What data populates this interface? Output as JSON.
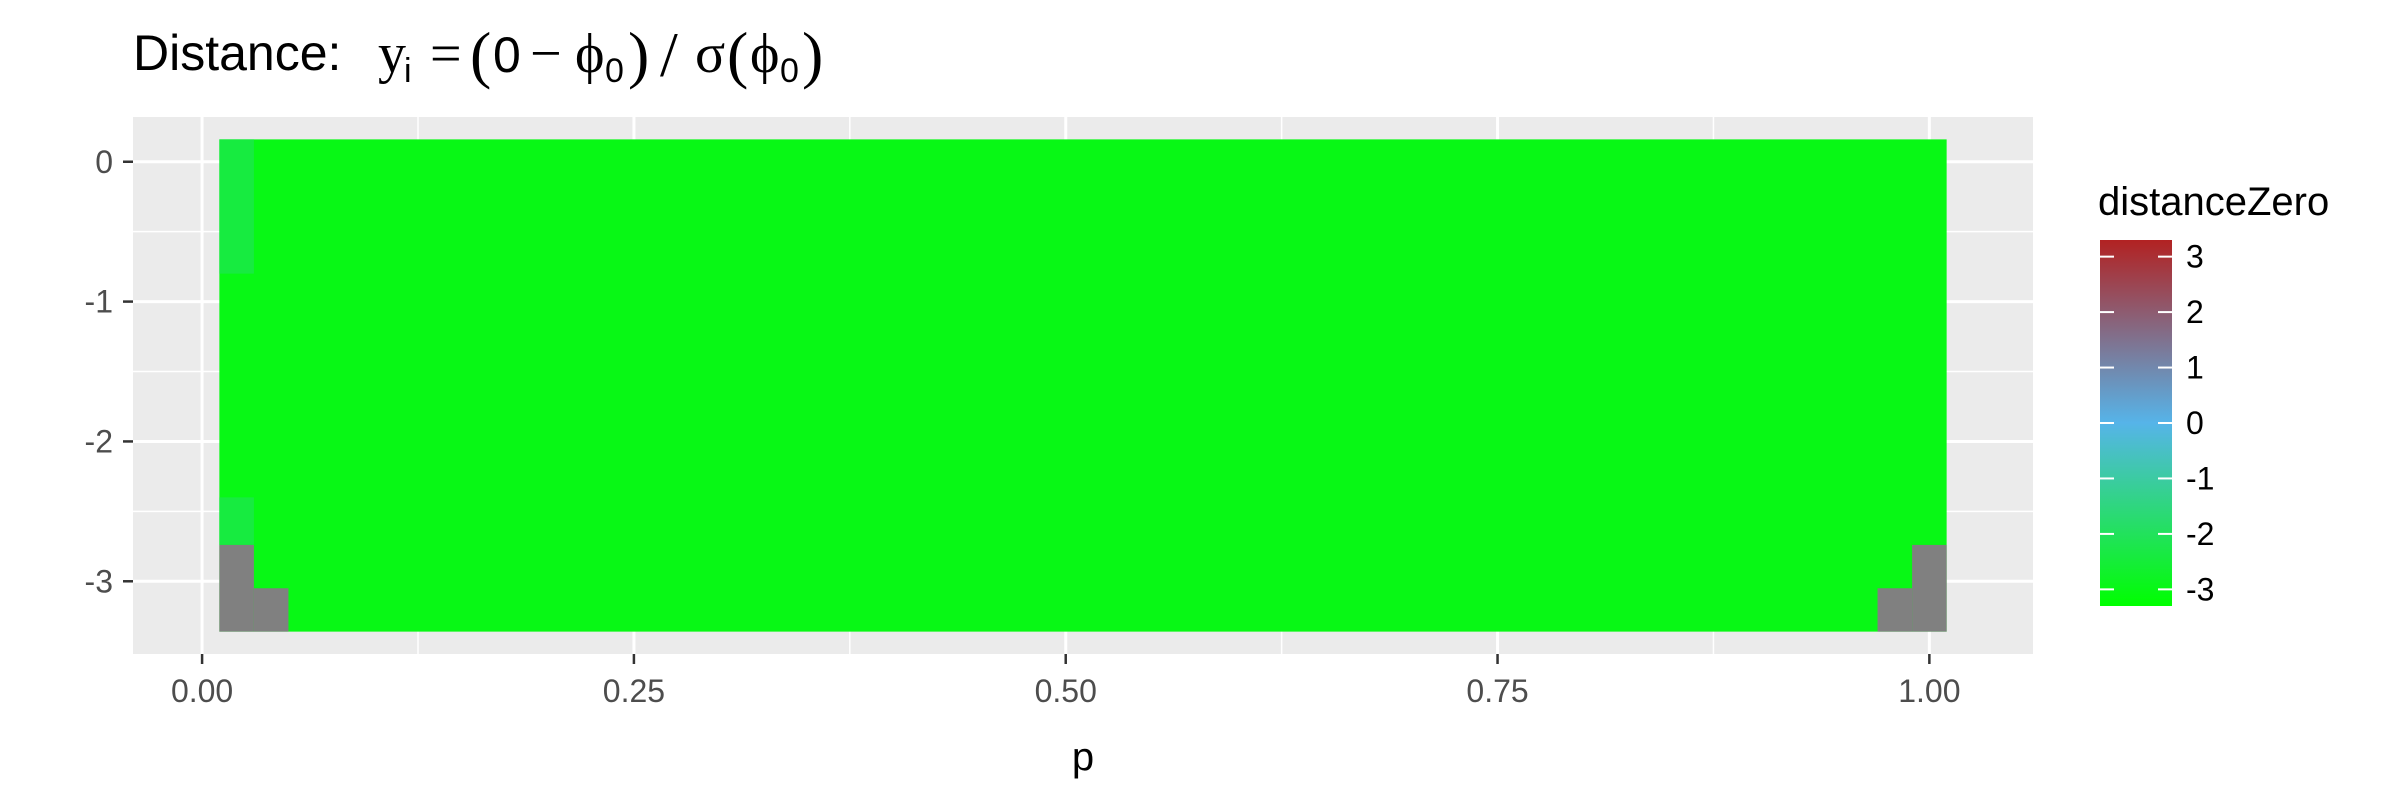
{
  "chart_data": {
    "type": "heatmap",
    "title_prefix": "Distance: ",
    "title_math": {
      "y": "y",
      "y_sub": "i",
      "equals": "=",
      "open": "(",
      "zero": "0",
      "minus": "−",
      "phi": "ϕ",
      "phi_sub": "0",
      "close": ")",
      "slash": "/",
      "sigma": "σ"
    },
    "xlabel": "p",
    "ylabel": "",
    "xlim": [
      -0.04,
      1.06
    ],
    "ylim": [
      -3.52,
      0.32
    ],
    "x_ticks": [
      {
        "value": 0,
        "label": "0.00"
      },
      {
        "value": 0.25,
        "label": "0.25"
      },
      {
        "value": 0.5,
        "label": "0.50"
      },
      {
        "value": 0.75,
        "label": "0.75"
      },
      {
        "value": 1,
        "label": "1.00"
      }
    ],
    "y_ticks": [
      {
        "value": 0,
        "label": "0"
      },
      {
        "value": -1,
        "label": "-1"
      },
      {
        "value": -2,
        "label": "-2"
      },
      {
        "value": -3,
        "label": "-3"
      }
    ],
    "grid": true,
    "cell_extent": {
      "x": [
        0.01,
        1.01
      ],
      "y": [
        -3.36,
        0.16
      ]
    },
    "background_value": -3,
    "cells": [
      {
        "x0": 0.01,
        "x1": 0.03,
        "y0": -0.8,
        "y1": 0.16,
        "value": -2.4
      },
      {
        "x0": 0.01,
        "x1": 0.03,
        "y0": -2.74,
        "y1": -2.4,
        "value": -2.4
      }
    ],
    "na_cells": [
      {
        "x0": 0.01,
        "x1": 0.03,
        "y0": -3.36,
        "y1": -2.74
      },
      {
        "x0": 0.03,
        "x1": 0.05,
        "y0": -3.36,
        "y1": -3.05
      },
      {
        "x0": 0.97,
        "x1": 0.99,
        "y0": -3.36,
        "y1": -3.05
      },
      {
        "x0": 0.99,
        "x1": 1.01,
        "y0": -3.36,
        "y1": -2.74
      }
    ],
    "legend": {
      "title": "distanceZero",
      "position": "right",
      "range": [
        -3.3,
        3.3
      ],
      "ticks": [
        {
          "value": 3,
          "label": "3"
        },
        {
          "value": 2,
          "label": "2"
        },
        {
          "value": 1,
          "label": "1"
        },
        {
          "value": 0,
          "label": "0"
        },
        {
          "value": -1,
          "label": "-1"
        },
        {
          "value": -2,
          "label": "-2"
        },
        {
          "value": -3,
          "label": "-3"
        }
      ],
      "colors": [
        {
          "value": -3.3,
          "color": "#00ff00"
        },
        {
          "value": 0,
          "color": "#56b4e9"
        },
        {
          "value": 3.3,
          "color": "#b22222"
        }
      ]
    },
    "colors": {
      "panel_background": "#ebebeb",
      "grid_major": "#ffffff",
      "na_fill": "#808080",
      "low": "#00ff00",
      "mid": "#56b4e9",
      "high": "#b22222"
    }
  }
}
